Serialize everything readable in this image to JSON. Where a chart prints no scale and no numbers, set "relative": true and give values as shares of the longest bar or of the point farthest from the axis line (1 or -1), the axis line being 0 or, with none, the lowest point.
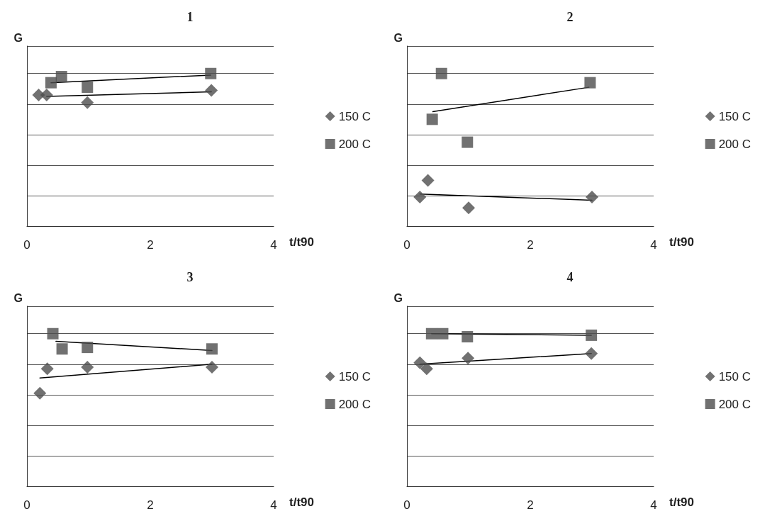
{
  "chart_data": [
    {
      "type": "scatter",
      "title": "1",
      "xlabel": "t/t90",
      "ylabel": "G",
      "relative": true,
      "xlim": [
        0,
        4
      ],
      "xticks": [
        0,
        2,
        4
      ],
      "grid": "y",
      "legend": "right",
      "series": [
        {
          "name": "150 C",
          "marker": "diamond",
          "color": "#4d4d4d",
          "x": [
            0.19,
            0.32,
            0.98,
            2.99
          ],
          "values": [
            0.86,
            0.86,
            0.81,
            0.89
          ]
        },
        {
          "name": "200 C",
          "marker": "square",
          "color": "#4d4d4d",
          "x": [
            0.39,
            0.56,
            0.98,
            2.98
          ],
          "values": [
            0.94,
            0.98,
            0.91,
            1.0
          ]
        },
        {
          "type": "line",
          "marker": "none",
          "color": "#000000",
          "x": [
            0.39,
            2.98
          ],
          "values": [
            0.94,
            0.99
          ]
        },
        {
          "type": "line",
          "marker": "none",
          "color": "#000000",
          "x": [
            0.32,
            2.99
          ],
          "values": [
            0.85,
            0.88
          ]
        }
      ]
    },
    {
      "type": "scatter",
      "title": "2",
      "xlabel": "t/t90",
      "ylabel": "G",
      "relative": true,
      "xlim": [
        0,
        4
      ],
      "xticks": [
        0,
        2,
        4
      ],
      "grid": "y",
      "legend": "right",
      "series": [
        {
          "name": "150 C",
          "marker": "diamond",
          "color": "#4d4d4d",
          "x": [
            0.21,
            0.34,
            1.0,
            3.0
          ],
          "values": [
            0.19,
            0.3,
            0.12,
            0.19
          ]
        },
        {
          "name": "200 C",
          "marker": "square",
          "color": "#4d4d4d",
          "x": [
            0.41,
            0.56,
            0.98,
            2.97
          ],
          "values": [
            0.7,
            1.0,
            0.55,
            0.94
          ]
        },
        {
          "type": "line",
          "marker": "none",
          "color": "#000000",
          "x": [
            0.42,
            2.95
          ],
          "values": [
            0.75,
            0.91
          ]
        },
        {
          "type": "line",
          "marker": "none",
          "color": "#000000",
          "x": [
            0.21,
            3.0
          ],
          "values": [
            0.21,
            0.17
          ]
        }
      ]
    },
    {
      "type": "scatter",
      "title": "3",
      "xlabel": "t/t90",
      "ylabel": "G",
      "relative": true,
      "xlim": [
        0,
        4
      ],
      "xticks": [
        0,
        2,
        4
      ],
      "grid": "y",
      "legend": "right",
      "series": [
        {
          "name": "150 C",
          "marker": "diamond",
          "color": "#4d4d4d",
          "x": [
            0.21,
            0.33,
            0.98,
            3.0
          ],
          "values": [
            0.61,
            0.77,
            0.78,
            0.78
          ]
        },
        {
          "name": "200 C",
          "marker": "square",
          "color": "#4d4d4d",
          "x": [
            0.42,
            0.57,
            0.98,
            3.0
          ],
          "values": [
            1.0,
            0.9,
            0.91,
            0.9
          ]
        },
        {
          "type": "line",
          "marker": "none",
          "color": "#000000",
          "x": [
            0.47,
            3.0
          ],
          "values": [
            0.95,
            0.89
          ]
        },
        {
          "type": "line",
          "marker": "none",
          "color": "#000000",
          "x": [
            0.21,
            3.0
          ],
          "values": [
            0.71,
            0.8
          ]
        }
      ]
    },
    {
      "type": "scatter",
      "title": "4",
      "xlabel": "t/t90",
      "ylabel": "G",
      "relative": true,
      "xlim": [
        0,
        4
      ],
      "xticks": [
        0,
        2,
        4
      ],
      "grid": "y",
      "legend": "right",
      "series": [
        {
          "name": "150 C",
          "marker": "diamond",
          "color": "#4d4d4d",
          "x": [
            0.21,
            0.32,
            0.99,
            2.99
          ],
          "values": [
            0.81,
            0.77,
            0.84,
            0.87
          ]
        },
        {
          "name": "200 C",
          "marker": "square",
          "color": "#4d4d4d",
          "x": [
            0.4,
            0.58,
            0.98,
            2.99
          ],
          "values": [
            1.0,
            1.0,
            0.98,
            0.99
          ]
        },
        {
          "type": "line",
          "marker": "none",
          "color": "#000000",
          "x": [
            0.4,
            2.99
          ],
          "values": [
            1.0,
            0.99
          ]
        },
        {
          "type": "line",
          "marker": "none",
          "color": "#000000",
          "x": [
            0.21,
            2.99
          ],
          "values": [
            0.8,
            0.87
          ]
        }
      ]
    }
  ]
}
